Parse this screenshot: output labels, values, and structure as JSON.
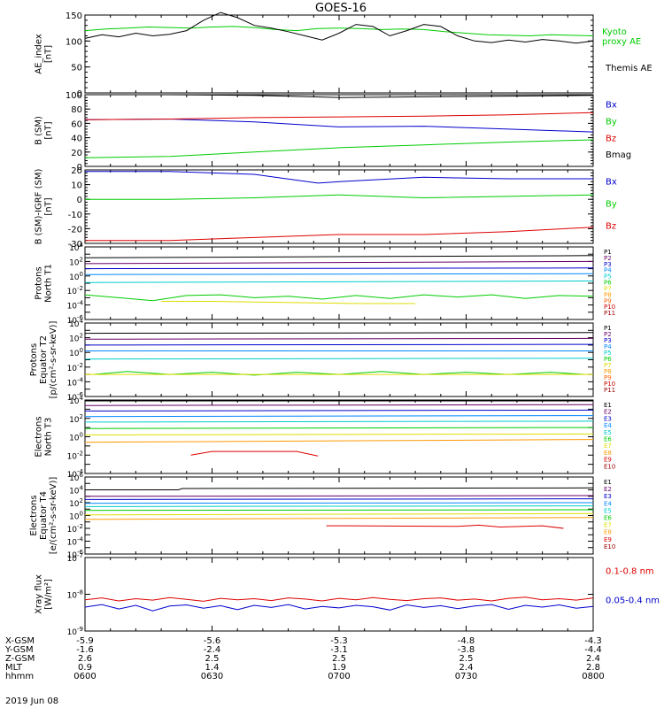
{
  "title": "GOES-16",
  "date_label": "2019 Jun 08",
  "footer": {
    "row_labels": [
      "X-GSM",
      "Y-GSM",
      "Z-GSM",
      "MLT",
      "hhmm"
    ],
    "columns": [
      [
        "-5.9",
        "-1.6",
        "2.6",
        "0.9",
        "0600"
      ],
      [
        "-5.6",
        "-2.4",
        "2.5",
        "1.4",
        "0630"
      ],
      [
        "-5.3",
        "-3.1",
        "2.5",
        "1.9",
        "0700"
      ],
      [
        "-4.8",
        "-3.8",
        "2.5",
        "2.4",
        "0730"
      ],
      [
        "-4.3",
        "-4.4",
        "2.4",
        "2.8",
        "0800"
      ]
    ]
  },
  "chart_data": [
    {
      "type": "line",
      "ylabel": [
        "AE_index",
        "[nT]"
      ],
      "yscale": "linear",
      "ylim": [
        0,
        150
      ],
      "yticks": [
        0,
        50,
        100,
        150
      ],
      "xlim": [
        0,
        120
      ],
      "series": [
        {
          "name": "Kyoto proxy AE",
          "label_lines": [
            "Kyoto",
            "proxy AE"
          ],
          "color": "#00cc00",
          "x": [
            0,
            5,
            10,
            15,
            20,
            25,
            30,
            35,
            40,
            45,
            50,
            55,
            60,
            65,
            70,
            75,
            80,
            85,
            90,
            95,
            100,
            105,
            110,
            115,
            120
          ],
          "y": [
            120,
            123,
            125,
            127,
            126,
            125,
            127,
            128,
            126,
            122,
            120,
            124,
            125,
            124,
            122,
            123,
            122,
            118,
            115,
            112,
            111,
            110,
            112,
            111,
            110
          ]
        },
        {
          "name": "Themis AE",
          "color": "#000000",
          "x": [
            0,
            4,
            8,
            12,
            16,
            20,
            24,
            28,
            32,
            36,
            40,
            44,
            48,
            52,
            56,
            60,
            64,
            68,
            72,
            76,
            80,
            84,
            88,
            92,
            96,
            100,
            104,
            108,
            112,
            116,
            120
          ],
          "y": [
            105,
            112,
            108,
            115,
            110,
            113,
            120,
            140,
            155,
            145,
            130,
            125,
            118,
            110,
            102,
            115,
            132,
            128,
            110,
            120,
            132,
            128,
            110,
            100,
            97,
            102,
            98,
            103,
            100,
            96,
            100
          ]
        }
      ]
    },
    {
      "type": "line",
      "ylabel": [
        "B (SM)",
        "[nT]"
      ],
      "yscale": "linear",
      "ylim": [
        0,
        100
      ],
      "yticks": [
        0,
        20,
        40,
        60,
        80,
        100
      ],
      "xlim": [
        0,
        120
      ],
      "series": [
        {
          "name": "Bx",
          "color": "#0000cc",
          "x": [
            0,
            20,
            40,
            60,
            80,
            100,
            120
          ],
          "y": [
            65,
            66,
            62,
            55,
            56,
            52,
            48
          ]
        },
        {
          "name": "By",
          "color": "#00cc00",
          "x": [
            0,
            20,
            40,
            60,
            80,
            100,
            120
          ],
          "y": [
            12,
            14,
            20,
            26,
            30,
            34,
            37
          ]
        },
        {
          "name": "Bz",
          "color": "#dd0000",
          "x": [
            0,
            20,
            40,
            60,
            80,
            100,
            120
          ],
          "y": [
            65,
            66,
            68,
            69,
            70,
            72,
            75
          ]
        },
        {
          "name": "Bmag",
          "color": "#000000",
          "x": [
            0,
            20,
            40,
            60,
            80,
            100,
            120
          ],
          "y": [
            100,
            100,
            99,
            96,
            97,
            98,
            99
          ]
        }
      ]
    },
    {
      "type": "line",
      "ylabel": [
        "B (SM)-IGRF (SM)",
        "[nT]"
      ],
      "yscale": "linear",
      "ylim": [
        -30,
        20
      ],
      "yticks": [
        -30,
        -20,
        -10,
        0,
        10,
        20
      ],
      "xlim": [
        0,
        120
      ],
      "series": [
        {
          "name": "Bx",
          "color": "#0000cc",
          "x": [
            0,
            20,
            40,
            55,
            60,
            80,
            100,
            120
          ],
          "y": [
            19,
            19,
            17,
            11,
            12,
            15,
            14,
            14
          ]
        },
        {
          "name": "By",
          "color": "#00cc00",
          "x": [
            0,
            20,
            40,
            60,
            80,
            100,
            120
          ],
          "y": [
            0,
            0,
            1,
            3,
            1,
            2,
            3
          ]
        },
        {
          "name": "Bz",
          "color": "#dd0000",
          "x": [
            0,
            20,
            40,
            60,
            80,
            100,
            120
          ],
          "y": [
            -28,
            -28,
            -26,
            -24,
            -24,
            -22,
            -19
          ]
        }
      ]
    },
    {
      "type": "line",
      "ylabel": [
        "Protons",
        "North T1"
      ],
      "yscale": "log",
      "ylim": [
        -6,
        4
      ],
      "ytick_labels": [
        "10^-6",
        "10^-4",
        "10^-2",
        "10^0",
        "10^2",
        "10^4"
      ],
      "xlim": [
        0,
        120
      ],
      "series": [
        {
          "name": "P1",
          "color": "#000000",
          "x": [
            0,
            120
          ],
          "y": [
            2.5,
            2.8
          ]
        },
        {
          "name": "P2",
          "color": "#660066",
          "x": [
            0,
            120
          ],
          "y": [
            1.7,
            2.0
          ]
        },
        {
          "name": "P3",
          "color": "#0000cc",
          "x": [
            0,
            120
          ],
          "y": [
            1.0,
            1.1
          ]
        },
        {
          "name": "P4",
          "color": "#0088ff",
          "x": [
            0,
            120
          ],
          "y": [
            0.2,
            0.3
          ]
        },
        {
          "name": "P5",
          "color": "#00cccc",
          "x": [
            0,
            120
          ],
          "y": [
            -0.9,
            -0.7
          ]
        },
        {
          "name": "P6",
          "color": "#00cc00",
          "x": [
            0,
            8,
            16,
            24,
            32,
            40,
            48,
            56,
            64,
            72,
            80,
            88,
            96,
            104,
            112,
            120
          ],
          "y": [
            -2.6,
            -3.0,
            -3.4,
            -2.7,
            -2.6,
            -3.0,
            -2.8,
            -3.2,
            -2.7,
            -3.1,
            -2.6,
            -2.9,
            -2.6,
            -3.1,
            -2.7,
            -2.8
          ]
        },
        {
          "name": "P7",
          "color": "#dddd00",
          "x": [
            18,
            30,
            65,
            78
          ],
          "y": [
            -3.5,
            -3.5,
            -3.8,
            -3.8
          ]
        },
        {
          "name": "P8",
          "color": "#ff9900",
          "x": [],
          "y": []
        },
        {
          "name": "P9",
          "color": "#ff6600",
          "x": [],
          "y": []
        },
        {
          "name": "P10",
          "color": "#cc0000",
          "x": [],
          "y": []
        },
        {
          "name": "P11",
          "color": "#990000",
          "x": [],
          "y": []
        }
      ]
    },
    {
      "type": "line",
      "ylabel": [
        "Protons",
        "Equator T2",
        "[p/(cm²-s-sr-keV)]"
      ],
      "yscale": "log",
      "ylim": [
        -6,
        4
      ],
      "ytick_labels": [
        "10^-6",
        "10^-4",
        "10^-2",
        "10^0",
        "10^2",
        "10^4"
      ],
      "xlim": [
        0,
        120
      ],
      "series": [
        {
          "name": "P1",
          "color": "#000000",
          "x": [
            0,
            120
          ],
          "y": [
            2.6,
            2.7
          ]
        },
        {
          "name": "P2",
          "color": "#660066",
          "x": [
            0,
            120
          ],
          "y": [
            1.8,
            1.9
          ]
        },
        {
          "name": "P3",
          "color": "#0000cc",
          "x": [
            0,
            120
          ],
          "y": [
            1.0,
            1.1
          ]
        },
        {
          "name": "P4",
          "color": "#0088ff",
          "x": [
            0,
            120
          ],
          "y": [
            0.2,
            0.2
          ]
        },
        {
          "name": "P5",
          "color": "#00cccc",
          "x": [
            0,
            120
          ],
          "y": [
            -0.9,
            -0.8
          ]
        },
        {
          "name": "P6",
          "color": "#00cc00",
          "x": [
            2,
            10,
            20,
            30,
            40,
            50,
            60,
            70,
            80,
            90,
            100,
            110,
            118
          ],
          "y": [
            -3.0,
            -2.6,
            -3.0,
            -2.7,
            -3.1,
            -2.7,
            -3.0,
            -2.6,
            -3.0,
            -2.7,
            -3.0,
            -2.7,
            -3.0
          ]
        },
        {
          "name": "P7",
          "color": "#dddd00",
          "x": [
            0,
            2,
            118,
            120
          ],
          "y": [
            -3.0,
            -3.0,
            -3.0,
            -3.0
          ]
        },
        {
          "name": "P8",
          "color": "#ff9900",
          "x": [],
          "y": []
        },
        {
          "name": "P9",
          "color": "#ff6600",
          "x": [],
          "y": []
        },
        {
          "name": "P10",
          "color": "#cc0000",
          "x": [],
          "y": []
        },
        {
          "name": "P11",
          "color": "#990000",
          "x": [],
          "y": []
        }
      ]
    },
    {
      "type": "line",
      "ylabel": [
        "Electrons",
        "North T3"
      ],
      "yscale": "log",
      "ylim": [
        -4,
        4
      ],
      "ytick_labels": [
        "10^-4",
        "10^-2",
        "10^0",
        "10^2",
        "10^4"
      ],
      "xlim": [
        0,
        120
      ],
      "series": [
        {
          "name": "E1",
          "color": "#000000",
          "x": [
            0,
            120
          ],
          "y": [
            3.9,
            3.9
          ]
        },
        {
          "name": "E2",
          "color": "#660066",
          "x": [
            0,
            120
          ],
          "y": [
            3.4,
            3.5
          ]
        },
        {
          "name": "E3",
          "color": "#0000cc",
          "x": [
            0,
            120
          ],
          "y": [
            2.8,
            2.9
          ]
        },
        {
          "name": "E4",
          "color": "#0088ff",
          "x": [
            0,
            120
          ],
          "y": [
            2.2,
            2.3
          ]
        },
        {
          "name": "E5",
          "color": "#00cccc",
          "x": [
            0,
            120
          ],
          "y": [
            1.6,
            1.7
          ]
        },
        {
          "name": "E6",
          "color": "#00cc00",
          "x": [
            0,
            120
          ],
          "y": [
            0.9,
            1.0
          ]
        },
        {
          "name": "E7",
          "color": "#dddd00",
          "x": [
            0,
            120
          ],
          "y": [
            0.2,
            0.3
          ]
        },
        {
          "name": "E8",
          "color": "#ff9900",
          "x": [
            0,
            120
          ],
          "y": [
            -0.6,
            -0.3
          ]
        },
        {
          "name": "E9",
          "color": "#dd0000",
          "x": [
            25,
            30,
            50,
            55
          ],
          "y": [
            -2.0,
            -1.6,
            -1.6,
            -2.1
          ]
        },
        {
          "name": "E10",
          "color": "#990000",
          "x": [],
          "y": []
        }
      ]
    },
    {
      "type": "line",
      "ylabel": [
        "Electrons",
        "Equator T4",
        "[e/(cm²-s-sr-keV)]"
      ],
      "yscale": "log",
      "ylim": [
        -6,
        6
      ],
      "ytick_labels": [
        "10^-6",
        "10^-4",
        "10^-2",
        "10^0",
        "10^2",
        "10^4",
        "10^6"
      ],
      "xlim": [
        0,
        120
      ],
      "series": [
        {
          "name": "E1",
          "color": "#000000",
          "x": [
            0,
            22,
            23,
            120
          ],
          "y": [
            4.0,
            4.0,
            4.2,
            4.3
          ]
        },
        {
          "name": "E2",
          "color": "#660066",
          "x": [
            0,
            120
          ],
          "y": [
            3.0,
            3.1
          ]
        },
        {
          "name": "E3",
          "color": "#0000cc",
          "x": [
            0,
            120
          ],
          "y": [
            2.5,
            2.6
          ]
        },
        {
          "name": "E4",
          "color": "#0088ff",
          "x": [
            0,
            120
          ],
          "y": [
            1.9,
            2.0
          ]
        },
        {
          "name": "E5",
          "color": "#00cccc",
          "x": [
            0,
            120
          ],
          "y": [
            1.4,
            1.5
          ]
        },
        {
          "name": "E6",
          "color": "#00cc00",
          "x": [
            0,
            120
          ],
          "y": [
            0.8,
            0.9
          ]
        },
        {
          "name": "E7",
          "color": "#dddd00",
          "x": [
            0,
            120
          ],
          "y": [
            0.1,
            0.3
          ]
        },
        {
          "name": "E8",
          "color": "#ff9900",
          "x": [
            0,
            120
          ],
          "y": [
            -0.6,
            -0.3
          ]
        },
        {
          "name": "E9",
          "color": "#dd0000",
          "x": [
            57,
            62,
            88,
            93,
            98,
            108,
            113
          ],
          "y": [
            -1.6,
            -1.6,
            -1.7,
            -1.5,
            -1.8,
            -1.6,
            -2.0
          ]
        },
        {
          "name": "E10",
          "color": "#990000",
          "x": [],
          "y": []
        }
      ]
    },
    {
      "type": "line",
      "ylabel": [
        "Xray flux",
        "[W/m²]"
      ],
      "yscale": "log",
      "ylim": [
        -9,
        -7
      ],
      "ytick_labels": [
        "10^-9",
        "10^-8",
        "10^-7"
      ],
      "xlim": [
        0,
        120
      ],
      "series": [
        {
          "name": "0.1-0.8 nm",
          "color": "#dd0000",
          "x": [
            0,
            4,
            8,
            12,
            16,
            20,
            24,
            28,
            32,
            36,
            40,
            44,
            48,
            52,
            56,
            60,
            64,
            68,
            72,
            76,
            80,
            84,
            88,
            92,
            96,
            100,
            104,
            108,
            112,
            116,
            120
          ],
          "y": [
            -8.15,
            -8.1,
            -8.18,
            -8.12,
            -8.16,
            -8.09,
            -8.14,
            -8.19,
            -8.11,
            -8.15,
            -8.12,
            -8.17,
            -8.1,
            -8.13,
            -8.18,
            -8.11,
            -8.15,
            -8.09,
            -8.14,
            -8.17,
            -8.12,
            -8.1,
            -8.16,
            -8.13,
            -8.18,
            -8.11,
            -8.08,
            -8.15,
            -8.12,
            -8.16,
            -8.1
          ]
        },
        {
          "name": "0.05-0.4 nm",
          "color": "#0000cc",
          "x": [
            0,
            4,
            8,
            12,
            16,
            20,
            24,
            28,
            32,
            36,
            40,
            44,
            48,
            52,
            56,
            60,
            64,
            68,
            72,
            76,
            80,
            84,
            88,
            92,
            96,
            100,
            104,
            108,
            112,
            116,
            120
          ],
          "y": [
            -8.35,
            -8.28,
            -8.4,
            -8.3,
            -8.45,
            -8.32,
            -8.29,
            -8.38,
            -8.31,
            -8.42,
            -8.3,
            -8.36,
            -8.28,
            -8.4,
            -8.33,
            -8.37,
            -8.3,
            -8.34,
            -8.43,
            -8.29,
            -8.36,
            -8.31,
            -8.39,
            -8.32,
            -8.28,
            -8.41,
            -8.3,
            -8.35,
            -8.29,
            -8.38,
            -8.33
          ]
        }
      ]
    }
  ]
}
